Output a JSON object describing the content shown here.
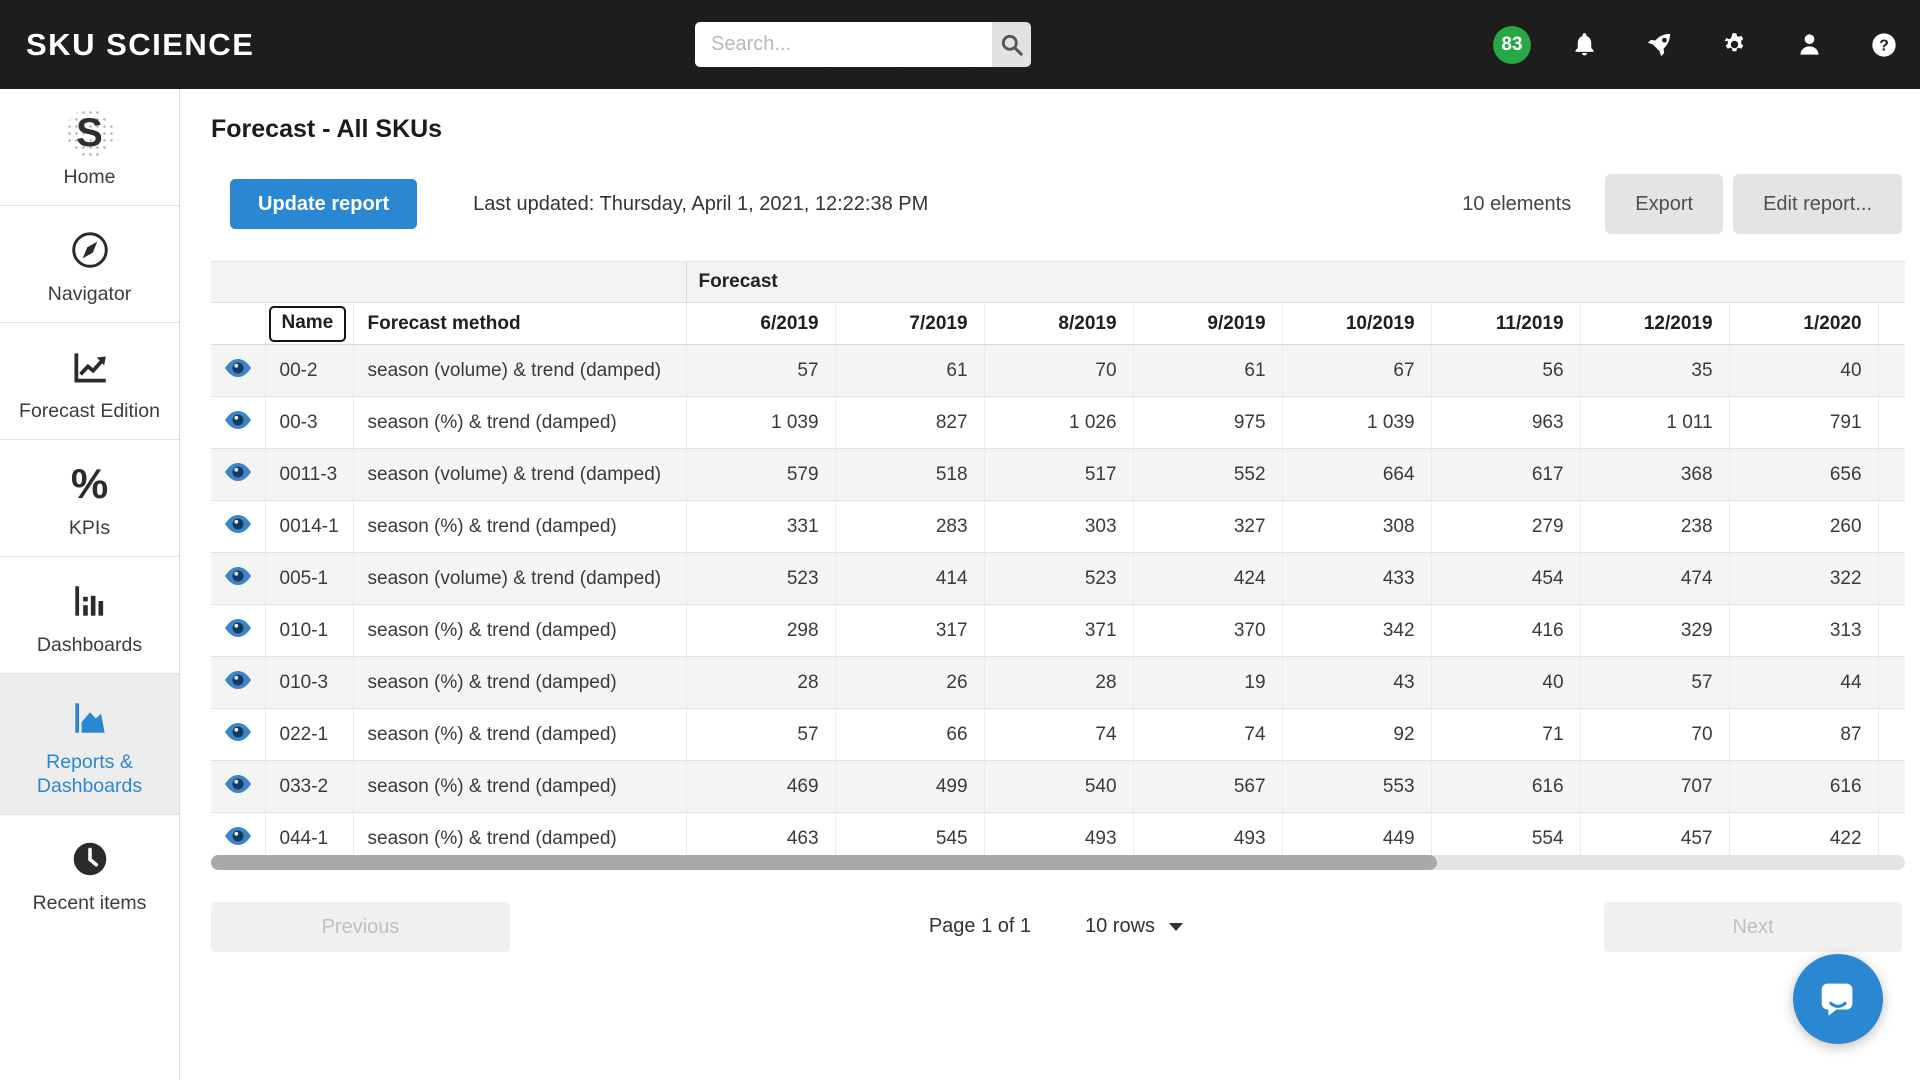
{
  "navbar": {
    "brand": "SKU SCIENCE",
    "search_placeholder": "Search...",
    "badge_count": "83"
  },
  "sidebar": {
    "items": [
      {
        "label": "Home",
        "icon": "sku-science-logo"
      },
      {
        "label": "Navigator",
        "icon": "compass"
      },
      {
        "label": "Forecast Edition",
        "icon": "line-chart"
      },
      {
        "label": "KPIs",
        "icon": "percent"
      },
      {
        "label": "Dashboards",
        "icon": "bar-chart"
      },
      {
        "label": "Reports & Dashboards",
        "icon": "area-chart",
        "active": true
      },
      {
        "label": "Recent items",
        "icon": "clock"
      }
    ],
    "percent_glyph": "%",
    "logo_letter": "S"
  },
  "page": {
    "title": "Forecast - All SKUs",
    "update_button": "Update report",
    "last_updated": "Last updated: Thursday, April 1, 2021, 12:22:38 PM",
    "elements_count": "10 elements",
    "export_button": "Export",
    "edit_report_button": "Edit report..."
  },
  "table": {
    "group_header": "Forecast",
    "name_header": "Name",
    "method_header": "Forecast method",
    "months": [
      "6/2019",
      "7/2019",
      "8/2019",
      "9/2019",
      "10/2019",
      "11/2019",
      "12/2019",
      "1/2020"
    ],
    "rows": [
      {
        "name": "00-2",
        "method": "season (volume) & trend (damped)",
        "values": [
          "57",
          "61",
          "70",
          "61",
          "67",
          "56",
          "35",
          "40"
        ]
      },
      {
        "name": "00-3",
        "method": "season (%) & trend (damped)",
        "values": [
          "1 039",
          "827",
          "1 026",
          "975",
          "1 039",
          "963",
          "1 011",
          "791"
        ]
      },
      {
        "name": "0011-3",
        "method": "season (volume) & trend (damped)",
        "values": [
          "579",
          "518",
          "517",
          "552",
          "664",
          "617",
          "368",
          "656"
        ]
      },
      {
        "name": "0014-1",
        "method": "season (%) & trend (damped)",
        "values": [
          "331",
          "283",
          "303",
          "327",
          "308",
          "279",
          "238",
          "260"
        ]
      },
      {
        "name": "005-1",
        "method": "season (volume) & trend (damped)",
        "values": [
          "523",
          "414",
          "523",
          "424",
          "433",
          "454",
          "474",
          "322"
        ]
      },
      {
        "name": "010-1",
        "method": "season (%) & trend (damped)",
        "values": [
          "298",
          "317",
          "371",
          "370",
          "342",
          "416",
          "329",
          "313"
        ]
      },
      {
        "name": "010-3",
        "method": "season (%) & trend (damped)",
        "values": [
          "28",
          "26",
          "28",
          "19",
          "43",
          "40",
          "57",
          "44"
        ]
      },
      {
        "name": "022-1",
        "method": "season (%) & trend (damped)",
        "values": [
          "57",
          "66",
          "74",
          "74",
          "92",
          "71",
          "70",
          "87"
        ]
      },
      {
        "name": "033-2",
        "method": "season (%) & trend (damped)",
        "values": [
          "469",
          "499",
          "540",
          "567",
          "553",
          "616",
          "707",
          "616"
        ]
      },
      {
        "name": "044-1",
        "method": "season (%) & trend (damped)",
        "values": [
          "463",
          "545",
          "493",
          "493",
          "449",
          "554",
          "457",
          "422"
        ]
      }
    ]
  },
  "pagination": {
    "previous": "Previous",
    "page_info": "Page 1 of 1",
    "rows_select": "10 rows",
    "next": "Next"
  },
  "colors": {
    "accent_blue": "#2b87d1",
    "badge_green": "#28a745",
    "navbar_bg": "#1d1d1d",
    "active_item_bg": "#ededed",
    "row_stripe": "#f5f5f5"
  }
}
